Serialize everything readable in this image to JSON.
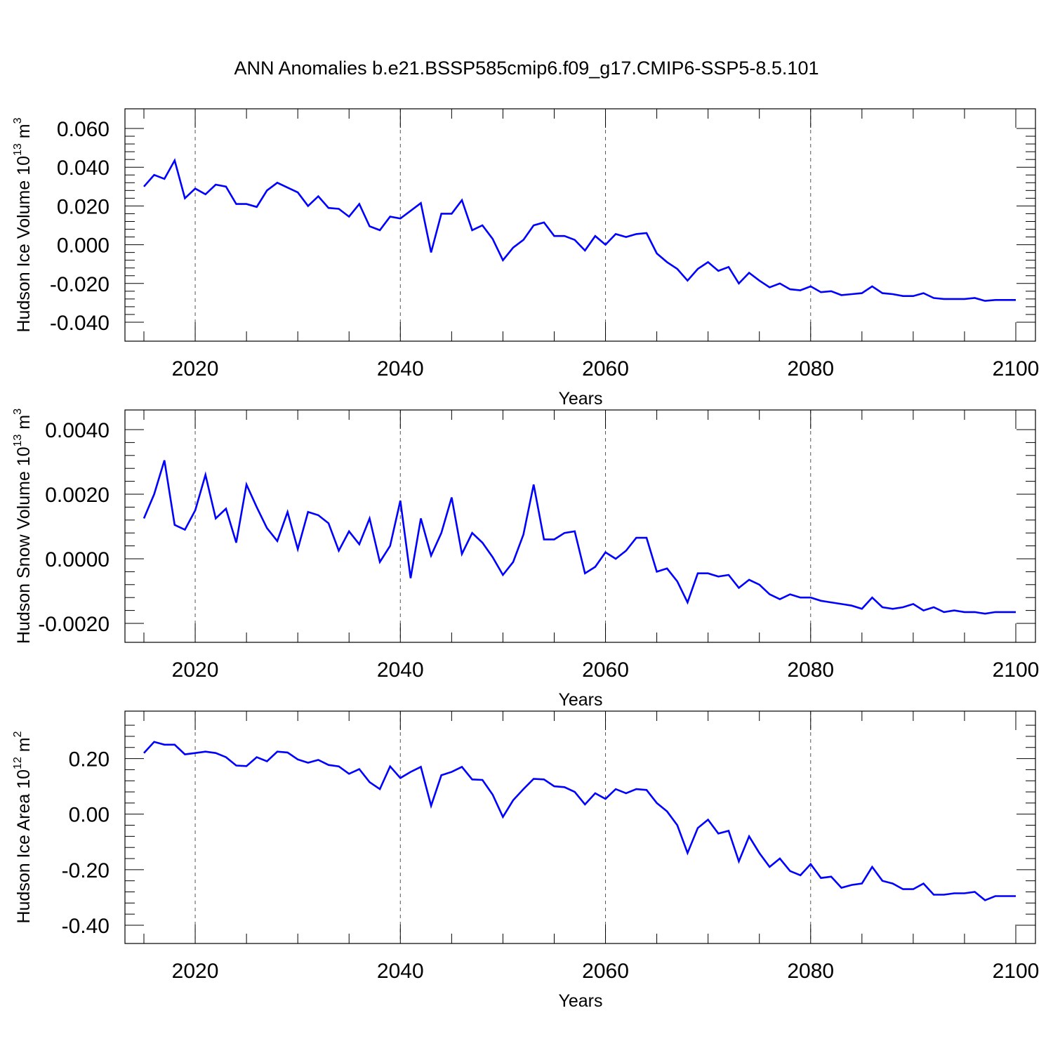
{
  "title": "ANN Anomalies b.e21.BSSP585cmip6.f09_g17.CMIP6-SSP5-8.5.101",
  "colors": {
    "line": "#0000ff",
    "axis": "#000000",
    "grid": "#555555"
  },
  "chart_data": [
    {
      "type": "line",
      "series": [
        {
          "values": [
            0.03,
            0.036,
            0.034,
            0.0435,
            0.024,
            0.029,
            0.026,
            0.031,
            0.03,
            0.021,
            0.021,
            0.0195,
            0.028,
            0.032,
            0.0295,
            0.027,
            0.02,
            0.025,
            0.019,
            0.0185,
            0.0145,
            0.021,
            0.0095,
            0.0075,
            0.0145,
            0.0135,
            0.0175,
            0.0215,
            -0.004,
            0.016,
            0.016,
            0.023,
            0.0075,
            0.01,
            0.003,
            -0.008,
            -0.0015,
            0.0025,
            0.01,
            0.0115,
            0.0045,
            0.0045,
            0.0025,
            -0.003,
            0.0045,
            0.0,
            0.0055,
            0.004,
            0.0055,
            0.006,
            -0.0045,
            -0.009,
            -0.0125,
            -0.0185,
            -0.0125,
            -0.009,
            -0.0135,
            -0.0115,
            -0.02,
            -0.0145,
            -0.0185,
            -0.022,
            -0.02,
            -0.023,
            -0.0235,
            -0.0215,
            -0.0245,
            -0.024,
            -0.026,
            -0.0255,
            -0.025,
            -0.0215,
            -0.025,
            -0.0255,
            -0.0265,
            -0.0265,
            -0.025,
            -0.0275,
            -0.028,
            -0.028,
            -0.028,
            -0.0275,
            -0.029,
            -0.0285,
            -0.0285,
            -0.0285
          ]
        }
      ],
      "x_start": 2015,
      "x_end": 2100,
      "xlim": [
        2015,
        2100
      ],
      "ylim": [
        -0.04,
        0.06
      ],
      "yticks": [
        -0.04,
        -0.02,
        0.0,
        0.02,
        0.04,
        0.06
      ],
      "ytick_labels": [
        "-0.040",
        "-0.020",
        "0.000",
        "0.020",
        "0.040",
        "0.060"
      ],
      "xticks": [
        2020,
        2040,
        2060,
        2080,
        2100
      ],
      "xtick_labels": [
        "2020",
        "2040",
        "2060",
        "2080",
        "2100"
      ],
      "xlabel": "Years",
      "ylabel_main": "Hudson Ice Volume 10",
      "ylabel_exp": "13",
      "ylabel_unit": " m",
      "ylabel_unit_exp": "3",
      "grid": "vertical dashed at major x ticks"
    },
    {
      "type": "line",
      "series": [
        {
          "values": [
            0.00125,
            0.002,
            0.00305,
            0.00105,
            0.0009,
            0.0015,
            0.0026,
            0.00125,
            0.00155,
            0.0005,
            0.0023,
            0.0016,
            0.00095,
            0.00055,
            0.00145,
            0.0003,
            0.00145,
            0.00135,
            0.0011,
            0.00025,
            0.00085,
            0.00045,
            0.00125,
            -0.0001,
            0.0004,
            0.0018,
            -0.0006,
            0.00125,
            0.0001,
            0.0008,
            0.0019,
            0.00015,
            0.0008,
            0.0005,
            5e-05,
            -0.0005,
            -0.0001,
            0.00075,
            0.0023,
            0.0006,
            0.0006,
            0.0008,
            0.00085,
            -0.00045,
            -0.00025,
            0.0002,
            0.0,
            0.00025,
            0.00065,
            0.00065,
            -0.0004,
            -0.0003,
            -0.0007,
            -0.00135,
            -0.00045,
            -0.00045,
            -0.00055,
            -0.0005,
            -0.0009,
            -0.00065,
            -0.0008,
            -0.0011,
            -0.00125,
            -0.0011,
            -0.0012,
            -0.0012,
            -0.0013,
            -0.00135,
            -0.0014,
            -0.00145,
            -0.00155,
            -0.0012,
            -0.0015,
            -0.00155,
            -0.0015,
            -0.0014,
            -0.0016,
            -0.0015,
            -0.00165,
            -0.0016,
            -0.00165,
            -0.00165,
            -0.0017,
            -0.00165,
            -0.00165,
            -0.00165
          ]
        }
      ],
      "x_start": 2015,
      "x_end": 2100,
      "xlim": [
        2015,
        2100
      ],
      "ylim": [
        -0.002,
        0.004
      ],
      "yticks": [
        -0.002,
        0.0,
        0.002,
        0.004
      ],
      "ytick_labels": [
        "-0.0020",
        "0.0000",
        "0.0020",
        "0.0040"
      ],
      "xticks": [
        2020,
        2040,
        2060,
        2080,
        2100
      ],
      "xtick_labels": [
        "2020",
        "2040",
        "2060",
        "2080",
        "2100"
      ],
      "xlabel": "Years",
      "ylabel_main": "Hudson Snow Volume 10",
      "ylabel_exp": "13",
      "ylabel_unit": " m",
      "ylabel_unit_exp": "3",
      "grid": "vertical dashed at major x ticks"
    },
    {
      "type": "line",
      "series": [
        {
          "values": [
            0.22,
            0.26,
            0.25,
            0.25,
            0.215,
            0.22,
            0.225,
            0.22,
            0.205,
            0.175,
            0.173,
            0.205,
            0.19,
            0.225,
            0.222,
            0.197,
            0.185,
            0.195,
            0.177,
            0.172,
            0.145,
            0.162,
            0.115,
            0.09,
            0.172,
            0.13,
            0.152,
            0.17,
            0.03,
            0.14,
            0.152,
            0.17,
            0.125,
            0.123,
            0.07,
            -0.01,
            0.05,
            0.09,
            0.127,
            0.125,
            0.1,
            0.097,
            0.08,
            0.035,
            0.075,
            0.055,
            0.09,
            0.075,
            0.09,
            0.087,
            0.04,
            0.01,
            -0.04,
            -0.14,
            -0.05,
            -0.02,
            -0.07,
            -0.06,
            -0.17,
            -0.08,
            -0.14,
            -0.19,
            -0.16,
            -0.205,
            -0.22,
            -0.18,
            -0.23,
            -0.225,
            -0.265,
            -0.255,
            -0.25,
            -0.19,
            -0.24,
            -0.25,
            -0.27,
            -0.27,
            -0.25,
            -0.29,
            -0.29,
            -0.285,
            -0.285,
            -0.28,
            -0.31,
            -0.295,
            -0.295,
            -0.295
          ]
        }
      ],
      "x_start": 2015,
      "x_end": 2100,
      "xlim": [
        2015,
        2100
      ],
      "ylim": [
        -0.4,
        0.3
      ],
      "yticks": [
        -0.4,
        -0.2,
        0.0,
        0.2
      ],
      "ytick_labels": [
        "-0.40",
        "-0.20",
        "0.00",
        "0.20"
      ],
      "xticks": [
        2020,
        2040,
        2060,
        2080,
        2100
      ],
      "xtick_labels": [
        "2020",
        "2040",
        "2060",
        "2080",
        "2100"
      ],
      "xlabel": "Years",
      "ylabel_main": "Hudson Ice Area 10",
      "ylabel_exp": "12",
      "ylabel_unit": " m",
      "ylabel_unit_exp": "2",
      "grid": "vertical dashed at major x ticks"
    }
  ]
}
